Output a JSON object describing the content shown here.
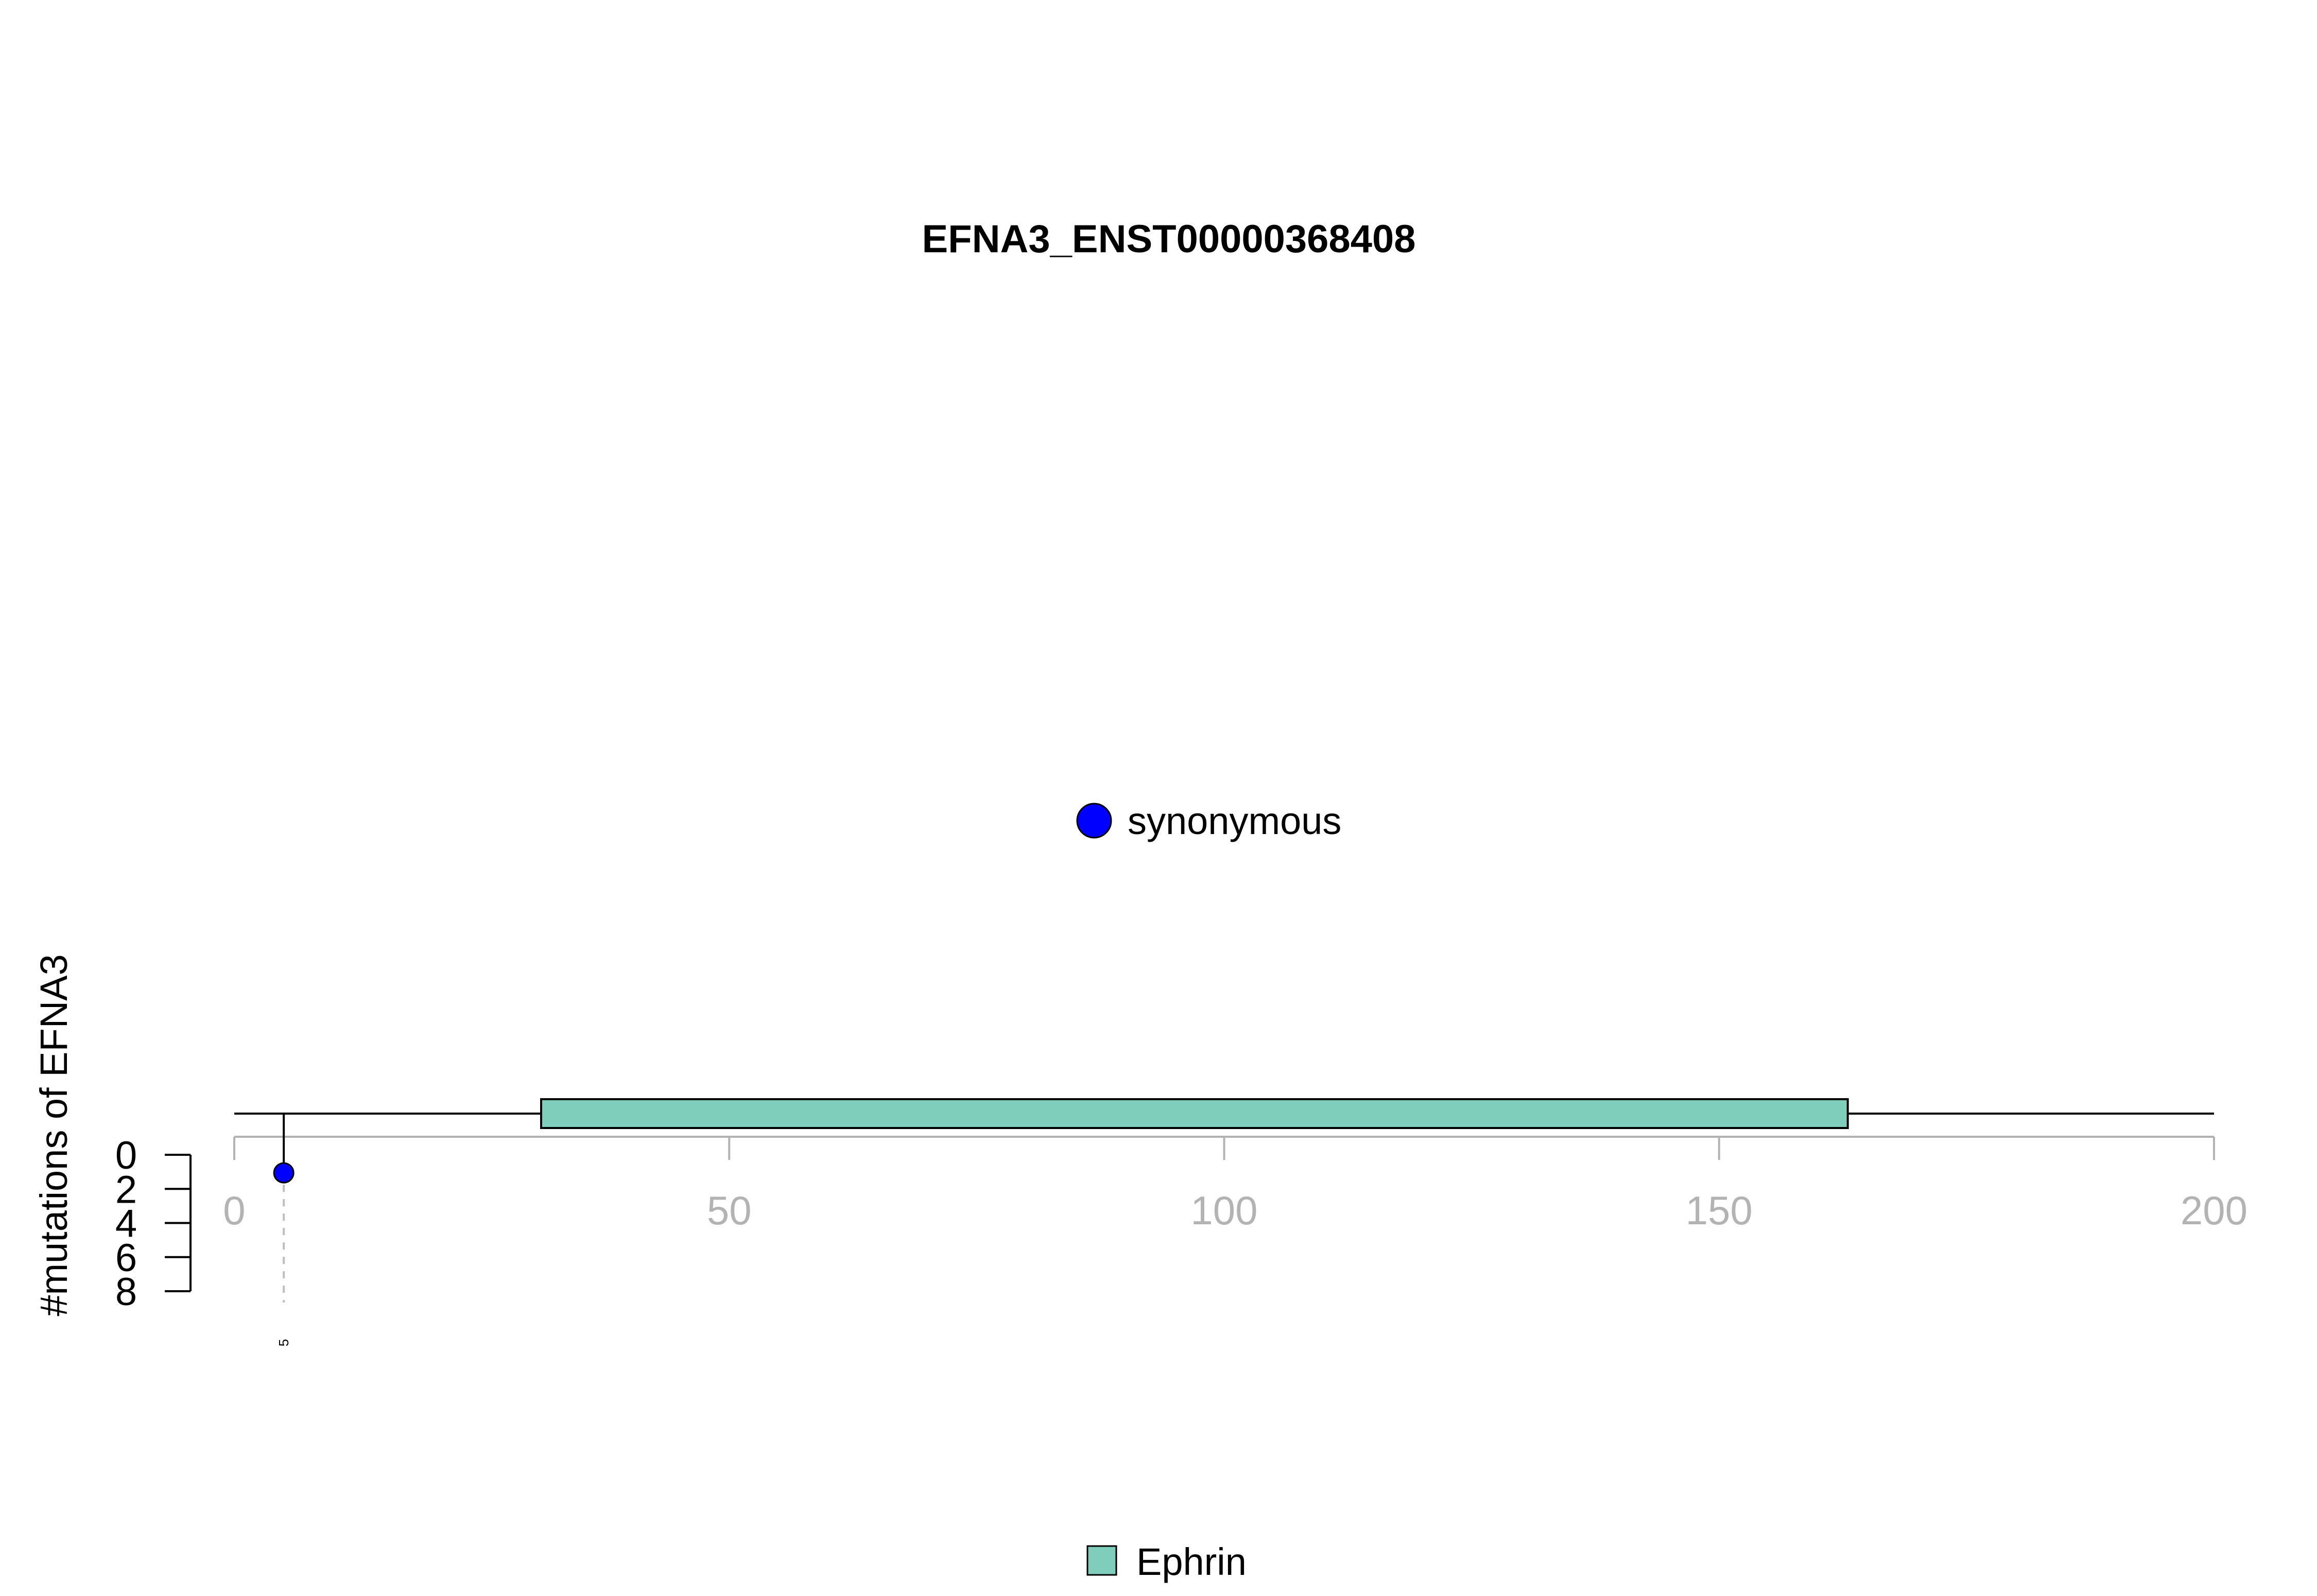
{
  "chart_data": {
    "type": "scatter",
    "subtype": "lollipop-mutation-plot",
    "title": "EFNA3_ENST00000368408",
    "ylabel": "#mutations of EFNA3",
    "xlim": [
      0,
      200
    ],
    "x_ticks": [
      0,
      50,
      100,
      150,
      200
    ],
    "y_ticks": [
      0,
      2,
      4,
      6,
      8
    ],
    "ylim": [
      0,
      8
    ],
    "y_axis_inverted": true,
    "protein_length": 200,
    "domains": [
      {
        "name": "Ephrin",
        "start": 31,
        "end": 163,
        "color": "#7FCDBB"
      }
    ],
    "mutations": [
      {
        "position": 5,
        "count": 1,
        "type": "synonymous",
        "label": "5",
        "color": "#0000FF"
      }
    ],
    "mutation_legend": [
      {
        "label": "synonymous",
        "color": "#0000FF"
      }
    ],
    "domain_legend": [
      {
        "label": "Ephrin",
        "color": "#7FCDBB"
      }
    ],
    "colors": {
      "axis_gray": "#B3B3B3",
      "guide_gray": "#BEBEBE",
      "line_black": "#000000"
    }
  }
}
